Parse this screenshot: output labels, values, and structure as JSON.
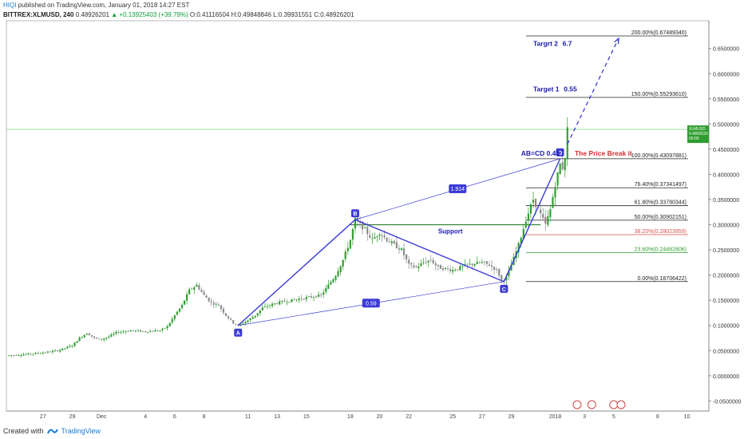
{
  "header": {
    "author": "HIQI",
    "published": "published on TradingView.com, January 01, 2018 14:27 EST",
    "symbol": "BITTREX:XLMUSD, 240",
    "last": "0.48926201",
    "change": "▲ +0.13925403 (+39.79%)",
    "ohlc": "O:0.41116504 H:0.49848846 L:0.39931551 C:0.48926201"
  },
  "footer": {
    "created": "Created with",
    "brand": "TradingView"
  },
  "colors": {
    "up": "#26a69a",
    "upCandle": "#2e9d2e",
    "downCandle": "#8a8a8a",
    "pattern": "#3b3bd6",
    "fibLine": "#222222",
    "fib382": "#e05050",
    "fib236": "#2e9d2e",
    "priceLine": "#7cd97c",
    "labelRed": "#d32f2f",
    "labelBlue": "#1a1ab0"
  },
  "chart_data": {
    "type": "candlestick",
    "ylim": [
      -0.07,
      0.705
    ],
    "y_ticks": [
      "0.6500000",
      "0.6000000",
      "0.5500000",
      "0.5000000",
      "0.4500000",
      "0.4000000",
      "0.3500000",
      "0.3000000",
      "0.2500000",
      "0.2000000",
      "0.1500000",
      "0.1000000",
      "0.0500000",
      "0.0000000",
      "-0.0500000"
    ],
    "y_tick_values": [
      0.65,
      0.6,
      0.55,
      0.5,
      0.45,
      0.4,
      0.35,
      0.3,
      0.25,
      0.2,
      0.15,
      0.1,
      0.05,
      0.0,
      -0.05
    ],
    "x_ticks": [
      "27",
      "29",
      "Dec",
      "4",
      "6",
      "8",
      "11",
      "13",
      "15",
      "18",
      "20",
      "22",
      "25",
      "27",
      "29",
      "2018",
      "3",
      "5",
      "8",
      "10"
    ],
    "x_tick_dates": [
      "2017-11-27",
      "2017-11-29",
      "2017-12-01",
      "2017-12-04",
      "2017-12-06",
      "2017-12-08",
      "2017-12-11",
      "2017-12-13",
      "2017-12-15",
      "2017-12-18",
      "2017-12-20",
      "2017-12-22",
      "2017-12-25",
      "2017-12-27",
      "2017-12-29",
      "2018-01-01",
      "2018-01-03",
      "2018-01-05",
      "2018-01-08",
      "2018-01-10"
    ],
    "x_range": [
      "2017-11-24 12:00",
      "2018-01-11 12:00"
    ],
    "price_series": [
      [
        "2017-11-24 12:00",
        0.04
      ],
      [
        "2017-11-26 00:00",
        0.043
      ],
      [
        "2017-11-27 00:00",
        0.046
      ],
      [
        "2017-11-28 00:00",
        0.05
      ],
      [
        "2017-11-29 00:00",
        0.06
      ],
      [
        "2017-11-29 12:00",
        0.075
      ],
      [
        "2017-11-30 00:00",
        0.085
      ],
      [
        "2017-11-30 12:00",
        0.075
      ],
      [
        "2017-12-01 00:00",
        0.072
      ],
      [
        "2017-12-01 12:00",
        0.078
      ],
      [
        "2017-12-02 00:00",
        0.086
      ],
      [
        "2017-12-03 00:00",
        0.09
      ],
      [
        "2017-12-04 00:00",
        0.088
      ],
      [
        "2017-12-05 00:00",
        0.09
      ],
      [
        "2017-12-05 12:00",
        0.098
      ],
      [
        "2017-12-06 00:00",
        0.12
      ],
      [
        "2017-12-06 12:00",
        0.14
      ],
      [
        "2017-12-07 00:00",
        0.17
      ],
      [
        "2017-12-07 12:00",
        0.18
      ],
      [
        "2017-12-08 00:00",
        0.16
      ],
      [
        "2017-12-08 12:00",
        0.145
      ],
      [
        "2017-12-09 00:00",
        0.14
      ],
      [
        "2017-12-09 12:00",
        0.12
      ],
      [
        "2017-12-10 00:00",
        0.105
      ],
      [
        "2017-12-10 08:00",
        0.1
      ],
      [
        "2017-12-11 00:00",
        0.11
      ],
      [
        "2017-12-11 12:00",
        0.12
      ],
      [
        "2017-12-12 00:00",
        0.135
      ],
      [
        "2017-12-13 00:00",
        0.145
      ],
      [
        "2017-12-14 00:00",
        0.15
      ],
      [
        "2017-12-15 00:00",
        0.155
      ],
      [
        "2017-12-16 00:00",
        0.16
      ],
      [
        "2017-12-16 12:00",
        0.18
      ],
      [
        "2017-12-17 00:00",
        0.2
      ],
      [
        "2017-12-17 12:00",
        0.23
      ],
      [
        "2017-12-18 00:00",
        0.27
      ],
      [
        "2017-12-18 08:00",
        0.31
      ],
      [
        "2017-12-18 16:00",
        0.3
      ],
      [
        "2017-12-19 00:00",
        0.29
      ],
      [
        "2017-12-19 12:00",
        0.27
      ],
      [
        "2017-12-20 00:00",
        0.285
      ],
      [
        "2017-12-20 12:00",
        0.27
      ],
      [
        "2017-12-21 00:00",
        0.26
      ],
      [
        "2017-12-21 12:00",
        0.25
      ],
      [
        "2017-12-22 00:00",
        0.22
      ],
      [
        "2017-12-22 12:00",
        0.215
      ],
      [
        "2017-12-23 00:00",
        0.225
      ],
      [
        "2017-12-23 12:00",
        0.23
      ],
      [
        "2017-12-24 00:00",
        0.215
      ],
      [
        "2017-12-25 00:00",
        0.21
      ],
      [
        "2017-12-25 12:00",
        0.215
      ],
      [
        "2017-12-26 00:00",
        0.22
      ],
      [
        "2017-12-27 00:00",
        0.225
      ],
      [
        "2017-12-27 12:00",
        0.22
      ],
      [
        "2017-12-28 00:00",
        0.21
      ],
      [
        "2017-12-28 08:00",
        0.19
      ],
      [
        "2017-12-28 16:00",
        0.195
      ],
      [
        "2017-12-29 00:00",
        0.22
      ],
      [
        "2017-12-29 12:00",
        0.26
      ],
      [
        "2017-12-30 00:00",
        0.31
      ],
      [
        "2017-12-30 12:00",
        0.35
      ],
      [
        "2017-12-31 00:00",
        0.32
      ],
      [
        "2017-12-31 08:00",
        0.3
      ],
      [
        "2017-12-31 16:00",
        0.33
      ],
      [
        "2018-01-01 00:00",
        0.38
      ],
      [
        "2018-01-01 08:00",
        0.42
      ],
      [
        "2018-01-01 14:00",
        0.41
      ],
      [
        "2018-01-01 20:00",
        0.489
      ]
    ],
    "fib_levels": [
      {
        "label": "200.00%(0.67489340)",
        "value": 0.6749,
        "color": "#222222"
      },
      {
        "label": "150.00%(0.55293610)",
        "value": 0.5529,
        "color": "#222222"
      },
      {
        "label": "100.00%(0.43097881)",
        "value": 0.431,
        "color": "#222222"
      },
      {
        "label": "76.40%(0.37341497)",
        "value": 0.3734,
        "color": "#222222"
      },
      {
        "label": "61.80%(0.33780344)",
        "value": 0.3378,
        "color": "#222222"
      },
      {
        "label": "50.00%(0.30902151)",
        "value": 0.309,
        "color": "#222222"
      },
      {
        "label": "38.20%(0.28023959)",
        "value": 0.2802,
        "color": "#e05050"
      },
      {
        "label": "23.60%(0.24462806)",
        "value": 0.2446,
        "color": "#2e9d2e"
      },
      {
        "label": "0.00%(0.18706422)",
        "value": 0.1871,
        "color": "#222222"
      }
    ],
    "pattern_points": [
      {
        "label": "A",
        "date": "2017-12-10 08:00",
        "value": 0.1
      },
      {
        "label": "B",
        "date": "2017-12-18 08:00",
        "value": 0.31
      },
      {
        "label": "C",
        "date": "2017-12-28 12:00",
        "value": 0.187
      },
      {
        "label": "D",
        "date": "2018-01-01 08:00",
        "value": 0.431
      }
    ],
    "ratios": {
      "ac": "0.59",
      "bd": "1.914"
    },
    "support": {
      "label": "Support",
      "value": 0.3
    },
    "current_price": {
      "value": 0.48926201,
      "label1": "XLMUSD",
      "label2": "0.4892620",
      "label3": "00:00"
    },
    "annotations": {
      "abcd": "AB=CD 0.43",
      "break": "The Price Break it",
      "target1": "Target 1",
      "target1_val": "0.55",
      "target2": "Targrt 2",
      "target2_val": "6.7"
    }
  }
}
